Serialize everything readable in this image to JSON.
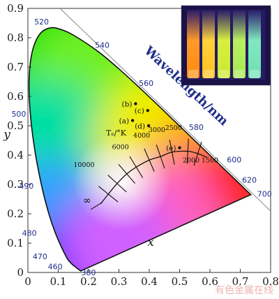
{
  "chart_data": {
    "type": "scatter",
    "xlabel": "x",
    "ylabel": "y",
    "xlim": [
      0,
      0.8
    ],
    "ylim": [
      0,
      0.9
    ],
    "xticks": [
      "0",
      "0.1",
      "0.2",
      "0.3",
      "0.4",
      "0.5",
      "0.6",
      "0.7",
      "0.8"
    ],
    "yticks": [
      "0",
      "0.1",
      "0.2",
      "0.3",
      "0.4",
      "0.5",
      "0.6",
      "0.7",
      "0.8",
      "0.9"
    ],
    "spectral_locus": [
      {
        "nm": 380,
        "x": 0.1741,
        "y": 0.005
      },
      {
        "nm": 460,
        "x": 0.144,
        "y": 0.0297
      },
      {
        "nm": 470,
        "x": 0.1241,
        "y": 0.0578
      },
      {
        "nm": 480,
        "x": 0.0913,
        "y": 0.1327
      },
      {
        "nm": 485,
        "x": 0.0687,
        "y": 0.2007
      },
      {
        "nm": 490,
        "x": 0.0454,
        "y": 0.295
      },
      {
        "nm": 495,
        "x": 0.0235,
        "y": 0.4127
      },
      {
        "nm": 500,
        "x": 0.0082,
        "y": 0.5384
      },
      {
        "nm": 505,
        "x": 0.0039,
        "y": 0.6548
      },
      {
        "nm": 510,
        "x": 0.0139,
        "y": 0.7502
      },
      {
        "nm": 515,
        "x": 0.0389,
        "y": 0.812
      },
      {
        "nm": 520,
        "x": 0.0743,
        "y": 0.8338
      },
      {
        "nm": 525,
        "x": 0.1142,
        "y": 0.8262
      },
      {
        "nm": 530,
        "x": 0.1547,
        "y": 0.8059
      },
      {
        "nm": 540,
        "x": 0.2296,
        "y": 0.7543
      },
      {
        "nm": 550,
        "x": 0.3016,
        "y": 0.6923
      },
      {
        "nm": 560,
        "x": 0.3731,
        "y": 0.6245
      },
      {
        "nm": 570,
        "x": 0.4441,
        "y": 0.5547
      },
      {
        "nm": 580,
        "x": 0.5125,
        "y": 0.4866
      },
      {
        "nm": 590,
        "x": 0.5752,
        "y": 0.4242
      },
      {
        "nm": 600,
        "x": 0.627,
        "y": 0.3725
      },
      {
        "nm": 620,
        "x": 0.6915,
        "y": 0.3083
      },
      {
        "nm": 700,
        "x": 0.7347,
        "y": 0.2653
      }
    ],
    "wavelength_labels": [
      {
        "text": "520",
        "x": 0.045,
        "y": 0.855
      },
      {
        "text": "540",
        "x": 0.245,
        "y": 0.775
      },
      {
        "text": "560",
        "x": 0.39,
        "y": 0.645
      },
      {
        "text": "580",
        "x": 0.555,
        "y": 0.495
      },
      {
        "text": "600",
        "x": 0.68,
        "y": 0.385
      },
      {
        "text": "620",
        "x": 0.73,
        "y": 0.315
      },
      {
        "text": "700",
        "x": 0.78,
        "y": 0.268
      },
      {
        "text": "500",
        "x": -0.03,
        "y": 0.54
      },
      {
        "text": "490",
        "x": -0.005,
        "y": 0.295
      },
      {
        "text": "480",
        "x": 0.005,
        "y": 0.135
      },
      {
        "text": "470",
        "x": 0.04,
        "y": 0.055
      },
      {
        "text": "460",
        "x": 0.09,
        "y": 0.02
      },
      {
        "text": "380",
        "x": 0.2,
        "y": 0.0
      }
    ],
    "wavelength_title": "Wavelength/nm",
    "tc_label": "Tₑ/°K",
    "planckian_locus": [
      {
        "x": 0.24,
        "y": 0.234
      },
      {
        "x": 0.265,
        "y": 0.267
      },
      {
        "x": 0.294,
        "y": 0.303
      },
      {
        "x": 0.326,
        "y": 0.336
      },
      {
        "x": 0.357,
        "y": 0.359
      },
      {
        "x": 0.4,
        "y": 0.383
      },
      {
        "x": 0.437,
        "y": 0.395
      },
      {
        "x": 0.475,
        "y": 0.41
      },
      {
        "x": 0.527,
        "y": 0.413
      },
      {
        "x": 0.56,
        "y": 0.405
      },
      {
        "x": 0.59,
        "y": 0.392
      }
    ],
    "cct_labels": [
      {
        "text": "∞",
        "x": 0.195,
        "y": 0.235
      },
      {
        "text": "10000",
        "x": 0.185,
        "y": 0.36
      },
      {
        "text": "6000",
        "x": 0.305,
        "y": 0.42
      },
      {
        "text": "4000",
        "x": 0.375,
        "y": 0.46
      },
      {
        "text": "3000",
        "x": 0.425,
        "y": 0.478
      },
      {
        "text": "2500",
        "x": 0.48,
        "y": 0.486
      },
      {
        "text": "2000",
        "x": 0.538,
        "y": 0.375
      },
      {
        "text": "1500",
        "x": 0.6,
        "y": 0.375
      }
    ],
    "points": [
      {
        "name": "(a)",
        "x": 0.345,
        "y": 0.518
      },
      {
        "name": "(b)",
        "x": 0.355,
        "y": 0.575
      },
      {
        "name": "(c)",
        "x": 0.395,
        "y": 0.552
      },
      {
        "name": "(d)",
        "x": 0.398,
        "y": 0.5
      },
      {
        "name": "(e)",
        "x": 0.5,
        "y": 0.425
      }
    ],
    "inset": {
      "content": "photo of five glowing vials (orange, yellow, green, light green, cyan)"
    }
  },
  "watermark": "有色金属在线"
}
